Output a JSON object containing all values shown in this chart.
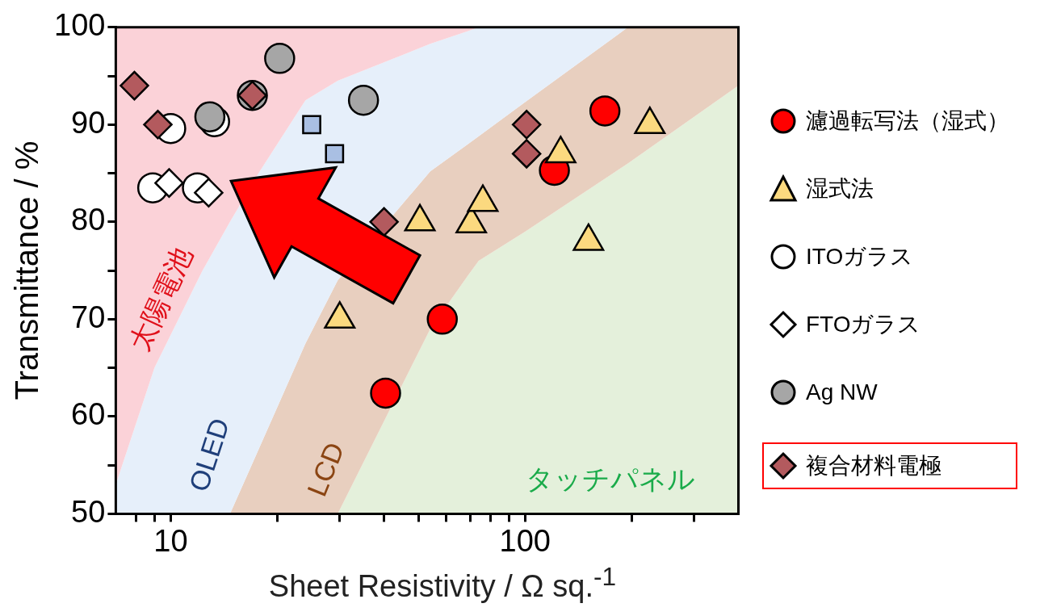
{
  "chart_data": {
    "type": "scatter",
    "xlabel": "Sheet Resistivity / Ω sq.$^{-1}$",
    "ylabel": "Transmittance / %",
    "log": "x",
    "xlim": [
      7,
      400
    ],
    "ylim": [
      50,
      100
    ],
    "xticks": [
      {
        "value": 8,
        "label": null
      },
      {
        "value": 9,
        "label": null
      },
      10,
      {
        "value": 20,
        "label": null
      },
      {
        "value": 30,
        "label": null
      },
      {
        "value": 40,
        "label": null
      },
      {
        "value": 50,
        "label": null
      },
      {
        "value": 60,
        "label": null
      },
      {
        "value": 70,
        "label": null
      },
      {
        "value": 80,
        "label": null
      },
      {
        "value": 90,
        "label": null
      },
      100,
      {
        "value": 200,
        "label": null
      },
      {
        "value": 300,
        "label": null
      }
    ],
    "yticks": [
      50,
      {
        "value": 55,
        "label": null
      },
      60,
      {
        "value": 65,
        "label": null
      },
      70,
      {
        "value": 75,
        "label": null
      },
      80,
      {
        "value": 85,
        "label": null
      },
      90,
      {
        "value": 95,
        "label": null
      },
      100
    ],
    "legend": "right",
    "series": [
      {
        "type": "area",
        "color": "#e4f0db",
        "x": [
          7,
          9,
          12.3,
          14.7,
          17.7,
          24,
          29.6,
          54,
          69,
          74,
          100,
          195,
          400
        ],
        "values": [
          50,
          50,
          50,
          50,
          50,
          50,
          50,
          69,
          74.5,
          76,
          79,
          86,
          94
        ]
      },
      {
        "type": "area",
        "color": "#e8cfbf",
        "x": [
          7,
          9,
          12.3,
          14.7,
          17.7,
          24,
          29.6,
          54,
          69,
          74,
          100,
          195,
          400
        ],
        "values": [
          50,
          50,
          50,
          50,
          56.6,
          67.5,
          74,
          85.2,
          88,
          88.8,
          92.3,
          100,
          100
        ]
      },
      {
        "type": "area",
        "color": "#e6effa",
        "x": [
          7,
          9,
          12.3,
          14.7,
          17.7,
          24,
          29.6,
          54,
          69,
          74,
          100,
          195
        ],
        "values": [
          53,
          65,
          75,
          80,
          85,
          92.5,
          94.5,
          98.3,
          99.6,
          100,
          100,
          100
        ]
      },
      {
        "type": "area",
        "color": "#fbd2d8",
        "x": [
          7,
          9,
          12.3,
          14.7,
          17.7,
          24,
          29.6,
          54,
          69,
          74
        ],
        "values": [
          100,
          100,
          100,
          100,
          100,
          100,
          100,
          100,
          100,
          100
        ]
      },
      {
        "name": "濾過転写法（湿式）",
        "marker": "circle",
        "color": "#ff0000",
        "x": [
          40.4,
          58.4,
          121,
          168
        ],
        "values": [
          62.4,
          70,
          85.3,
          91.4
        ]
      },
      {
        "name": "湿式法",
        "marker": "triangle",
        "color": "#fbd97f",
        "x": [
          30,
          50.5,
          70.5,
          76,
          126,
          151,
          225
        ],
        "values": [
          70,
          80,
          79.8,
          82,
          87,
          78,
          90
        ]
      },
      {
        "name": "ITOガラス",
        "marker": "circle",
        "color": "#ffffff",
        "x": [
          8.9,
          10,
          11.9,
          13.3
        ],
        "values": [
          83.5,
          89.6,
          83.5,
          90.3
        ]
      },
      {
        "name": "FTOガラス",
        "marker": "diamond",
        "color": "#ffffff",
        "x": [
          9.9,
          12.8
        ],
        "values": [
          84,
          83
        ]
      },
      {
        "name": "Ag NW",
        "marker": "circle",
        "color": "#a6a6a6",
        "x": [
          12.9,
          17,
          20.3,
          35
        ],
        "values": [
          90.8,
          93,
          96.8,
          92.5
        ]
      },
      {
        "marker": "square",
        "color": "#a9bfe3",
        "x": [
          25,
          29
        ],
        "values": [
          90,
          87
        ]
      },
      {
        "name": "複合材料電極",
        "marker": "diamond",
        "color": "#b35a5e",
        "x": [
          7.9,
          9.2,
          17,
          40,
          101,
          101
        ],
        "values": [
          94,
          90,
          93,
          80,
          90,
          87
        ]
      }
    ],
    "annotations": [
      "太陽電池",
      "OLED",
      "LCD",
      "タッチパネル"
    ]
  }
}
